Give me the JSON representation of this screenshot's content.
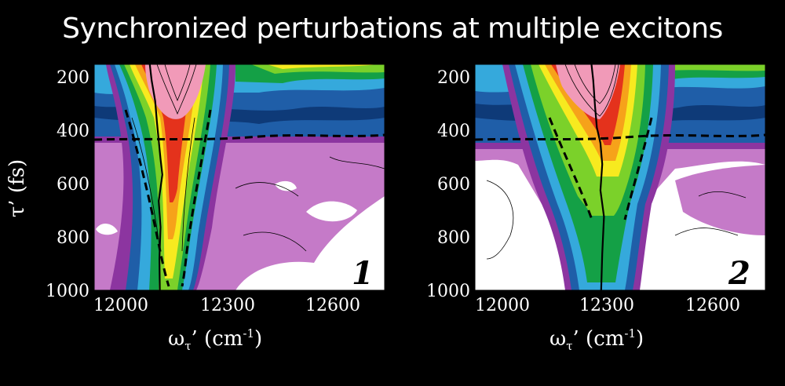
{
  "title": "Synchronized perturbations at multiple excitons",
  "ylabel": "τ’ (fs)",
  "xlabel_main": "ω",
  "xlabel_sub": "τ",
  "xlabel_rest": "’ (cm",
  "xlabel_sup": "-1",
  "xlabel_close": ")",
  "colors": {
    "background": "#000000",
    "levels": [
      "#ffffff",
      "#c57ac8",
      "#8c35a0",
      "#1f5ea8",
      "#35a9dc",
      "#14a046",
      "#7bd12a",
      "#f7ea1f",
      "#f6a21a",
      "#e4321c",
      "#f19ab8"
    ]
  },
  "chart_data": [
    {
      "type": "heatmap",
      "panel_label": "1",
      "y_ticks": [
        "200",
        "400",
        "600",
        "800",
        "1000"
      ],
      "x_ticks": [
        "12000",
        "12300",
        "12600"
      ],
      "xlim": [
        11950,
        12760
      ],
      "ylim": [
        1000,
        140
      ],
      "peak_ridge": {
        "x": [
          12105,
          12110,
          12120,
          12125,
          12130,
          12135,
          12140,
          12130,
          12135,
          12132,
          12133
        ],
        "y": [
          140,
          200,
          280,
          360,
          430,
          500,
          560,
          660,
          760,
          880,
          1000
        ]
      }
    },
    {
      "type": "heatmap",
      "panel_label": "2",
      "y_ticks": [
        "200",
        "400",
        "600",
        "800",
        "1000"
      ],
      "x_ticks": [
        "12000",
        "12300",
        "12600"
      ],
      "xlim": [
        11950,
        12760
      ],
      "ylim": [
        1000,
        140
      ],
      "peak_ridge": {
        "x": [
          12275,
          12280,
          12285,
          12290,
          12300,
          12305,
          12300,
          12310,
          12305,
          12302
        ],
        "y": [
          140,
          200,
          300,
          380,
          440,
          520,
          620,
          720,
          860,
          1000
        ]
      }
    }
  ]
}
